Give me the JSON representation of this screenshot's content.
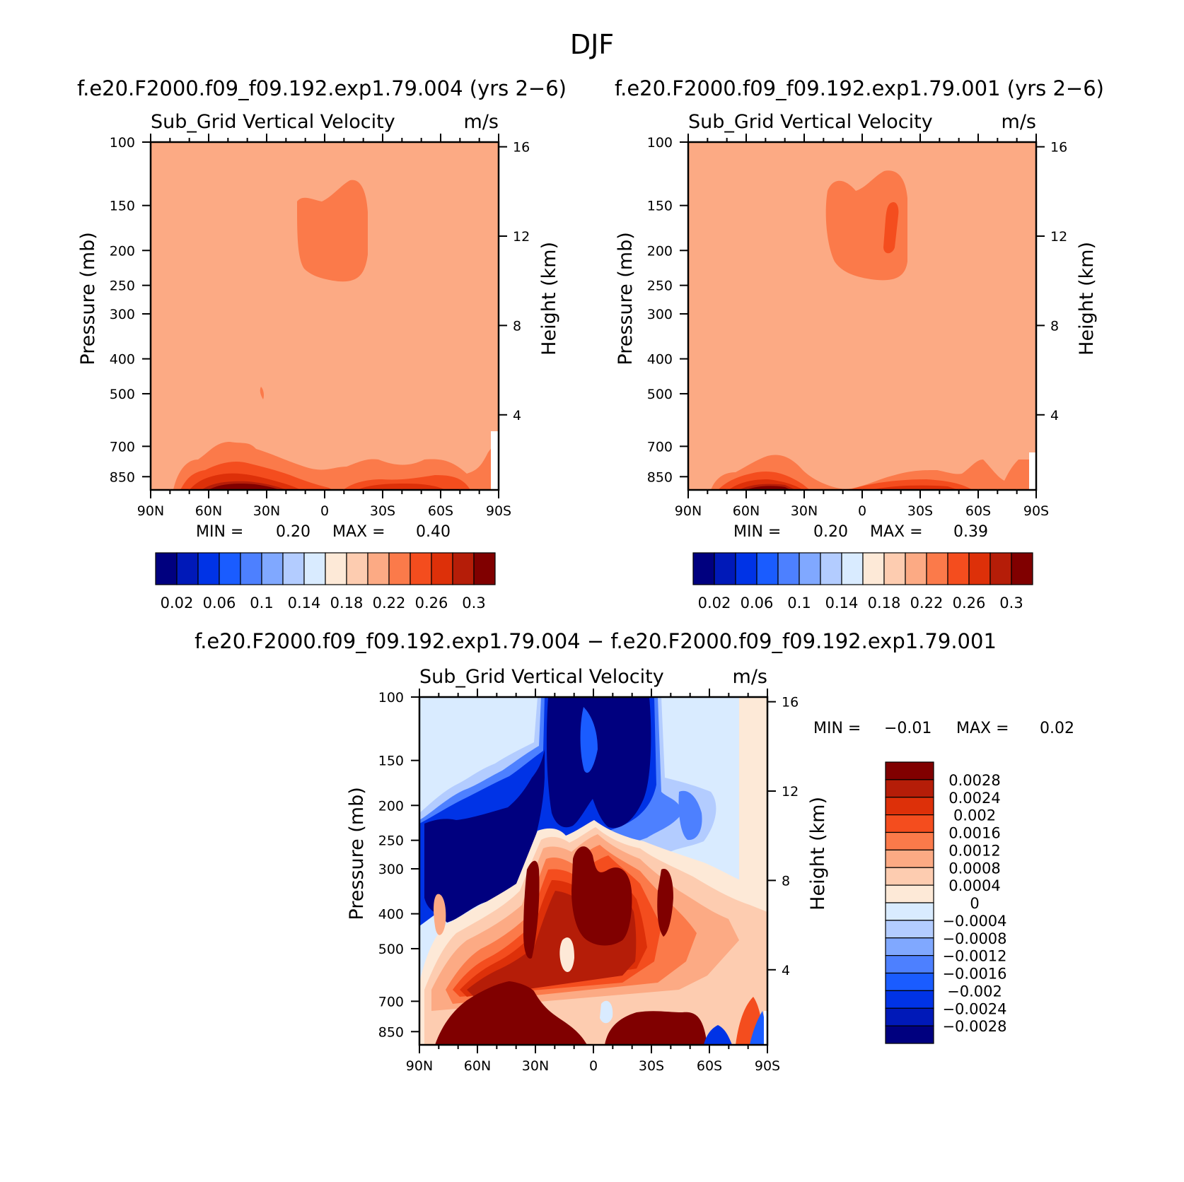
{
  "figure": {
    "title": "DJF",
    "diff_title": "f.e20.F2000.f09_f09.192.exp1.79.004 − f.e20.F2000.f09_f09.192.exp1.79.001"
  },
  "chart_data": [
    {
      "type": "heatmap",
      "case_title": "f.e20.F2000.f09_f09.192.exp1.79.004 (yrs 2−6)",
      "variable": "Sub_Grid Vertical Velocity",
      "units": "m/s",
      "xlabel": "",
      "ylabel": "Pressure (mb)",
      "ylabel_right": "Height (km)",
      "x_ticks": [
        "90N",
        "60N",
        "30N",
        "0",
        "30S",
        "60S",
        "90S"
      ],
      "y_ticks": [
        "100",
        "150",
        "200",
        "250",
        "300",
        "400",
        "500",
        "700",
        "850"
      ],
      "height_ticks": [
        "16",
        "12",
        "8",
        "4"
      ],
      "min_label": "MIN =",
      "min_value": "0.20",
      "max_label": "MAX =",
      "max_value": "0.40",
      "levels": [
        "0.02",
        "0.06",
        "0.1",
        "0.14",
        "0.18",
        "0.22",
        "0.26",
        "0.3"
      ],
      "colors": [
        "#00007f",
        "#0019b8",
        "#0033e6",
        "#1a5cff",
        "#4d80ff",
        "#80a8ff",
        "#b3ccff",
        "#d9ebff",
        "#fde9d7",
        "#fdccb0",
        "#fcaa84",
        "#fb7a4a",
        "#f44d1e",
        "#dd3009",
        "#b51d08",
        "#800000"
      ]
    },
    {
      "type": "heatmap",
      "case_title": "f.e20.F2000.f09_f09.192.exp1.79.001 (yrs 2−6)",
      "variable": "Sub_Grid Vertical Velocity",
      "units": "m/s",
      "xlabel": "",
      "ylabel": "Pressure (mb)",
      "ylabel_right": "Height (km)",
      "x_ticks": [
        "90N",
        "60N",
        "30N",
        "0",
        "30S",
        "60S",
        "90S"
      ],
      "y_ticks": [
        "100",
        "150",
        "200",
        "250",
        "300",
        "400",
        "500",
        "700",
        "850"
      ],
      "height_ticks": [
        "16",
        "12",
        "8",
        "4"
      ],
      "min_label": "MIN =",
      "min_value": "0.20",
      "max_label": "MAX =",
      "max_value": "0.39",
      "levels": [
        "0.02",
        "0.06",
        "0.1",
        "0.14",
        "0.18",
        "0.22",
        "0.26",
        "0.3"
      ],
      "colors": [
        "#00007f",
        "#0019b8",
        "#0033e6",
        "#1a5cff",
        "#4d80ff",
        "#80a8ff",
        "#b3ccff",
        "#d9ebff",
        "#fde9d7",
        "#fdccb0",
        "#fcaa84",
        "#fb7a4a",
        "#f44d1e",
        "#dd3009",
        "#b51d08",
        "#800000"
      ]
    },
    {
      "type": "heatmap",
      "case_title": "",
      "variable": "Sub_Grid Vertical Velocity",
      "units": "m/s",
      "xlabel": "",
      "ylabel": "Pressure (mb)",
      "ylabel_right": "Height (km)",
      "x_ticks": [
        "90N",
        "60N",
        "30N",
        "0",
        "30S",
        "60S",
        "90S"
      ],
      "y_ticks": [
        "100",
        "150",
        "200",
        "250",
        "300",
        "400",
        "500",
        "700",
        "850"
      ],
      "height_ticks": [
        "16",
        "12",
        "8",
        "4"
      ],
      "min_label": "MIN =",
      "min_value": "−0.01",
      "max_label": "MAX =",
      "max_value": "0.02",
      "levels": [
        "0.0028",
        "0.0024",
        "0.002",
        "0.0016",
        "0.0012",
        "0.0008",
        "0.0004",
        "0",
        "−0.0004",
        "−0.0008",
        "−0.0012",
        "−0.0016",
        "−0.002",
        "−0.0024",
        "−0.0028"
      ],
      "colors": [
        "#800000",
        "#b51d08",
        "#dd3009",
        "#f44d1e",
        "#fb7a4a",
        "#fcaa84",
        "#fdccb0",
        "#fde9d7",
        "#d9ebff",
        "#b3ccff",
        "#80a8ff",
        "#4d80ff",
        "#1a5cff",
        "#0033e6",
        "#0019b8",
        "#00007f"
      ]
    }
  ]
}
